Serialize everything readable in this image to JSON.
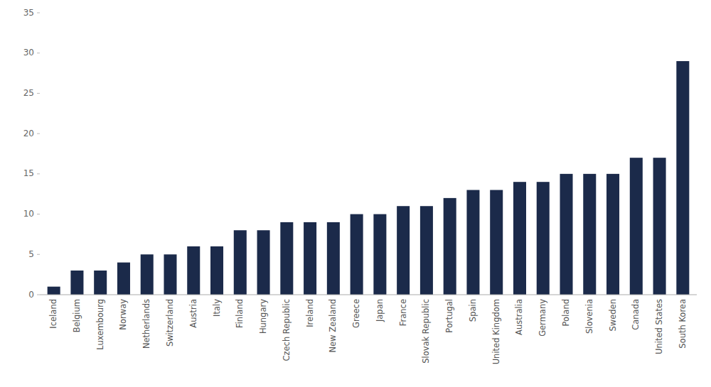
{
  "chart_data": {
    "type": "bar",
    "categories": [
      "Iceland",
      "Belgium",
      "Luxembourg",
      "Norway",
      "Netherlands",
      "Switzerland",
      "Austria",
      "Italy",
      "Finland",
      "Hungary",
      "Czech Republic",
      "Ireland",
      "New Zealand",
      "Greece",
      "Japan",
      "France",
      "Slovak Republic",
      "Portugal",
      "Spain",
      "United Kingdom",
      "Australia",
      "Germany",
      "Poland",
      "Slovenia",
      "Sweden",
      "Canada",
      "United States",
      "South Korea"
    ],
    "values": [
      1,
      3,
      3,
      4,
      5,
      5,
      6,
      6,
      8,
      8,
      9,
      9,
      9,
      10,
      10,
      11,
      11,
      12,
      13,
      13,
      14,
      14,
      15,
      15,
      15,
      17,
      17,
      29
    ],
    "color": "#1b2a4a",
    "ylim": [
      0,
      35
    ],
    "yticks": [
      0,
      5,
      10,
      15,
      20,
      25,
      30,
      35
    ],
    "grid": false
  }
}
